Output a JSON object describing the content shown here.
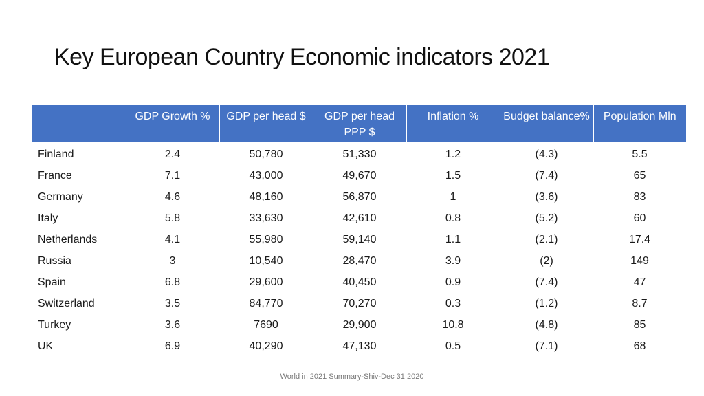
{
  "slide": {
    "title": "Key European Country Economic indicators 2021",
    "footer": "World in 2021 Summary-Shiv-Dec 31 2020",
    "header_color": "#4472c4"
  },
  "table": {
    "headers": [
      "",
      "GDP Growth %",
      "GDP per head $",
      "GDP per head PPP $",
      "Inflation %",
      "Budget balance%",
      "Population Mln"
    ],
    "rows": [
      [
        "Finland",
        "2.4",
        "50,780",
        "51,330",
        "1.2",
        "(4.3)",
        "5.5"
      ],
      [
        "France",
        "7.1",
        "43,000",
        "49,670",
        "1.5",
        "(7.4)",
        "65"
      ],
      [
        "Germany",
        "4.6",
        "48,160",
        "56,870",
        "1",
        "(3.6)",
        "83"
      ],
      [
        "Italy",
        "5.8",
        "33,630",
        "42,610",
        "0.8",
        "(5.2)",
        "60"
      ],
      [
        "Netherlands",
        "4.1",
        "55,980",
        "59,140",
        "1.1",
        "(2.1)",
        "17.4"
      ],
      [
        "Russia",
        "3",
        "10,540",
        "28,470",
        "3.9",
        "(2)",
        "149"
      ],
      [
        "Spain",
        "6.8",
        "29,600",
        "40,450",
        "0.9",
        "(7.4)",
        "47"
      ],
      [
        "Switzerland",
        "3.5",
        "84,770",
        "70,270",
        "0.3",
        "(1.2)",
        "8.7"
      ],
      [
        "Turkey",
        "3.6",
        "7690",
        "29,900",
        "10.8",
        "(4.8)",
        "85"
      ],
      [
        "UK",
        "6.9",
        "40,290",
        "47,130",
        "0.5",
        "(7.1)",
        "68"
      ]
    ]
  }
}
